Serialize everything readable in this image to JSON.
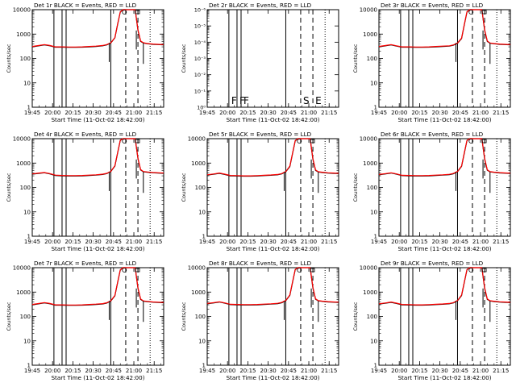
{
  "chart_data": {
    "type": "line",
    "xlabel": "Start Time (11-Oct-02 18:42:00)",
    "ylabel": "Counts/sec",
    "x_ticks": [
      "19:45",
      "20:00",
      "20:15",
      "20:30",
      "20:45",
      "21:00",
      "21:15"
    ],
    "x_tick_minutes": [
      63,
      78,
      93,
      108,
      123,
      138,
      153
    ],
    "x_range_minutes": [
      63,
      160
    ],
    "y_scale": "log",
    "y_range": [
      1,
      10000
    ],
    "y_ticks": [
      "1",
      "10",
      "100",
      "1000",
      "10000"
    ],
    "y_ticks_det2": [
      "10⁰",
      "10⁻¹",
      "10⁻²",
      "10⁻³",
      "10⁻⁴",
      "10⁻⁵",
      "10⁻⁶"
    ],
    "colors": {
      "events": "#000000",
      "lld": "#ff0000",
      "axes": "#000000"
    },
    "event_markers": {
      "solid_minutes": [
        79,
        85,
        88,
        121
      ],
      "dashed_minutes": [
        132,
        141
      ],
      "dotted_minutes": [
        150
      ],
      "labels_det2": [
        "F",
        "F",
        "F",
        "S",
        "E"
      ]
    },
    "shared_series_minutes": [
      63,
      68,
      72,
      76,
      80,
      85,
      90,
      95,
      100,
      105,
      110,
      115,
      118,
      121,
      124,
      126,
      128,
      130,
      132,
      136,
      139,
      141,
      143,
      145,
      148,
      152,
      156,
      160
    ],
    "panels": [
      {
        "title": "Det 1r  BLACK = Events, RED = LLD",
        "events": [
          300,
          330,
          360,
          330,
          290,
          290,
          285,
          285,
          290,
          300,
          310,
          330,
          360,
          430,
          700,
          2500,
          8000,
          10000,
          10000,
          10000,
          10000,
          1400,
          500,
          430,
          400,
          380,
          370,
          360
        ],
        "lld": [
          310,
          340,
          370,
          340,
          300,
          300,
          295,
          295,
          300,
          310,
          320,
          340,
          370,
          440,
          720,
          2600,
          8200,
          10000,
          10000,
          10000,
          10000,
          1500,
          520,
          440,
          410,
          390,
          380,
          370
        ]
      },
      {
        "title": "Det 2r  BLACK = Events, RED = LLD",
        "events": [],
        "lld": []
      },
      {
        "title": "Det 3r  BLACK = Events, RED = LLD",
        "events": [
          300,
          330,
          360,
          320,
          290,
          290,
          285,
          285,
          290,
          300,
          310,
          320,
          350,
          420,
          650,
          2400,
          8000,
          10000,
          10000,
          10000,
          10000,
          1400,
          500,
          420,
          400,
          380,
          370,
          360
        ],
        "lld": [
          310,
          340,
          370,
          330,
          300,
          300,
          295,
          295,
          300,
          310,
          320,
          330,
          360,
          430,
          680,
          2500,
          8200,
          10000,
          10000,
          10000,
          10000,
          1500,
          520,
          430,
          410,
          390,
          380,
          370
        ]
      },
      {
        "title": "Det 4r  BLACK = Events, RED = LLD",
        "events": [
          350,
          380,
          400,
          360,
          310,
          300,
          295,
          295,
          300,
          310,
          320,
          340,
          370,
          450,
          750,
          2600,
          8500,
          10000,
          10000,
          10000,
          10000,
          1500,
          520,
          440,
          420,
          400,
          390,
          380
        ],
        "lld": [
          360,
          390,
          410,
          370,
          320,
          310,
          305,
          305,
          310,
          320,
          330,
          350,
          380,
          460,
          780,
          2700,
          8700,
          10000,
          10000,
          10000,
          10000,
          1600,
          540,
          450,
          430,
          410,
          400,
          390
        ]
      },
      {
        "title": "Det 5r  BLACK = Events, RED = LLD",
        "events": [
          320,
          350,
          380,
          340,
          300,
          295,
          290,
          290,
          295,
          305,
          315,
          330,
          360,
          440,
          720,
          2500,
          8200,
          10000,
          10000,
          10000,
          10000,
          1400,
          500,
          430,
          410,
          390,
          380,
          370
        ],
        "lld": [
          330,
          360,
          390,
          350,
          310,
          305,
          300,
          300,
          305,
          315,
          325,
          340,
          370,
          450,
          750,
          2600,
          8400,
          10000,
          10000,
          10000,
          10000,
          1500,
          520,
          440,
          420,
          400,
          390,
          380
        ]
      },
      {
        "title": "Det 6r  BLACK = Events, RED = LLD",
        "events": [
          330,
          360,
          390,
          350,
          305,
          300,
          295,
          295,
          300,
          310,
          320,
          335,
          365,
          445,
          730,
          2550,
          8300,
          10000,
          10000,
          10000,
          10000,
          1450,
          510,
          435,
          415,
          395,
          385,
          375
        ],
        "lld": [
          340,
          370,
          400,
          360,
          315,
          310,
          305,
          305,
          310,
          320,
          330,
          345,
          375,
          455,
          760,
          2650,
          8500,
          10000,
          10000,
          10000,
          10000,
          1550,
          530,
          445,
          425,
          405,
          395,
          385
        ]
      },
      {
        "title": "Det 7r  BLACK = Events, RED = LLD",
        "events": [
          300,
          330,
          360,
          330,
          290,
          290,
          285,
          285,
          290,
          300,
          310,
          325,
          355,
          430,
          700,
          2450,
          8000,
          10000,
          10000,
          10000,
          10000,
          1400,
          500,
          425,
          405,
          385,
          375,
          365
        ],
        "lld": [
          310,
          340,
          370,
          340,
          300,
          300,
          295,
          295,
          300,
          310,
          320,
          335,
          365,
          440,
          730,
          2550,
          8200,
          10000,
          10000,
          10000,
          10000,
          1500,
          520,
          435,
          415,
          395,
          385,
          375
        ]
      },
      {
        "title": "Det 8r  BLACK = Events, RED = LLD",
        "events": [
          330,
          360,
          390,
          350,
          305,
          300,
          295,
          295,
          300,
          310,
          320,
          335,
          365,
          445,
          730,
          2550,
          8300,
          10000,
          10000,
          10000,
          10000,
          1450,
          510,
          435,
          415,
          395,
          385,
          375
        ],
        "lld": [
          340,
          370,
          400,
          360,
          315,
          310,
          305,
          305,
          310,
          320,
          330,
          345,
          375,
          455,
          760,
          2650,
          8500,
          10000,
          10000,
          10000,
          10000,
          1550,
          530,
          445,
          425,
          405,
          395,
          385
        ]
      },
      {
        "title": "Det 9r  BLACK = Events, RED = LLD",
        "events": [
          320,
          350,
          380,
          340,
          300,
          295,
          290,
          290,
          295,
          305,
          315,
          330,
          360,
          440,
          720,
          2500,
          8200,
          10000,
          10000,
          10000,
          10000,
          1400,
          500,
          430,
          410,
          390,
          380,
          370
        ],
        "lld": [
          330,
          360,
          390,
          350,
          310,
          305,
          300,
          300,
          305,
          315,
          325,
          340,
          370,
          450,
          750,
          2600,
          8400,
          10000,
          10000,
          10000,
          10000,
          1500,
          520,
          440,
          420,
          400,
          390,
          380
        ]
      }
    ]
  }
}
